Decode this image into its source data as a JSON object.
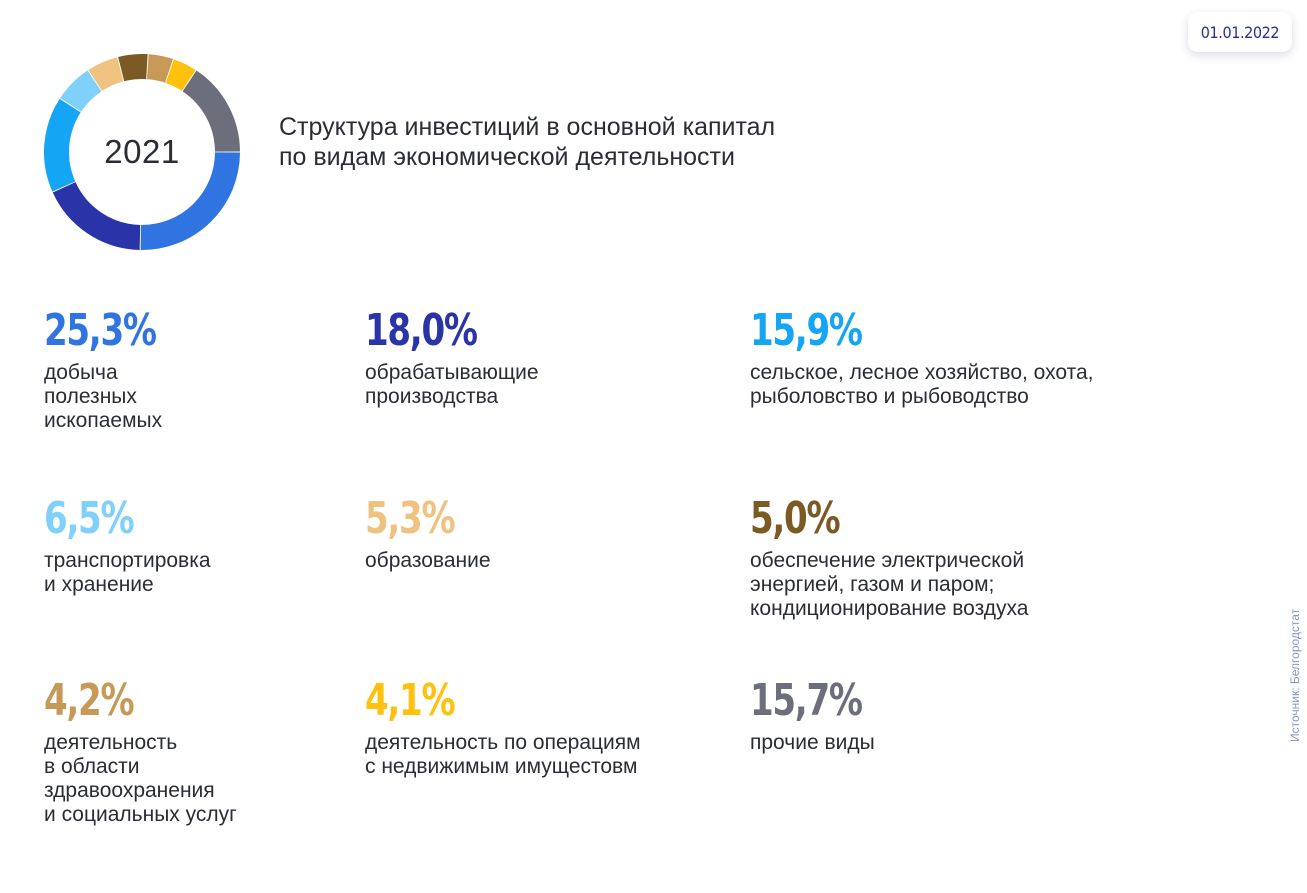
{
  "date": "01.01.2022",
  "year": "2021",
  "title_lines": [
    "Структура инвестиций в основной капитал",
    "по видам экономической деятельности"
  ],
  "source": "Источник: Белгородстат",
  "chart_data": {
    "type": "pie",
    "donut": true,
    "slices": [
      {
        "value": 25.3,
        "label": "25,3%",
        "text_lines": [
          "добыча",
          "полезных",
          "ископаемых"
        ],
        "color": "#2f74e0"
      },
      {
        "value": 18.0,
        "label": "18,0%",
        "text_lines": [
          "обрабатывающие",
          "производства"
        ],
        "color": "#2a33a8"
      },
      {
        "value": 15.9,
        "label": "15,9%",
        "text_lines": [
          "сельское, лесное хозяйство, охота,",
          "рыболовство и рыбоводство"
        ],
        "color": "#14a6f5"
      },
      {
        "value": 6.5,
        "label": "6,5%",
        "text_lines": [
          "транспортировка",
          "и хранение"
        ],
        "color": "#7fd0fa"
      },
      {
        "value": 5.3,
        "label": "5,3%",
        "text_lines": [
          "образование"
        ],
        "color": "#efc27f"
      },
      {
        "value": 5.0,
        "label": "5,0%",
        "text_lines": [
          "обеспечение электрической",
          "энергией, газом и паром;",
          "кондиционирование воздуха"
        ],
        "color": "#7b5a23"
      },
      {
        "value": 4.2,
        "label": "4,2%",
        "text_lines": [
          "деятельность",
          "в области",
          "здравоохранения",
          "и социальных услуг"
        ],
        "color": "#c69a56"
      },
      {
        "value": 4.1,
        "label": "4,1%",
        "text_lines": [
          "деятельность по операциям",
          "с недвижимым имущестовм"
        ],
        "color": "#fec10d"
      },
      {
        "value": 15.7,
        "label": "15,7%",
        "text_lines": [
          "прочие виды"
        ],
        "color": "#6c6e7b"
      }
    ]
  }
}
